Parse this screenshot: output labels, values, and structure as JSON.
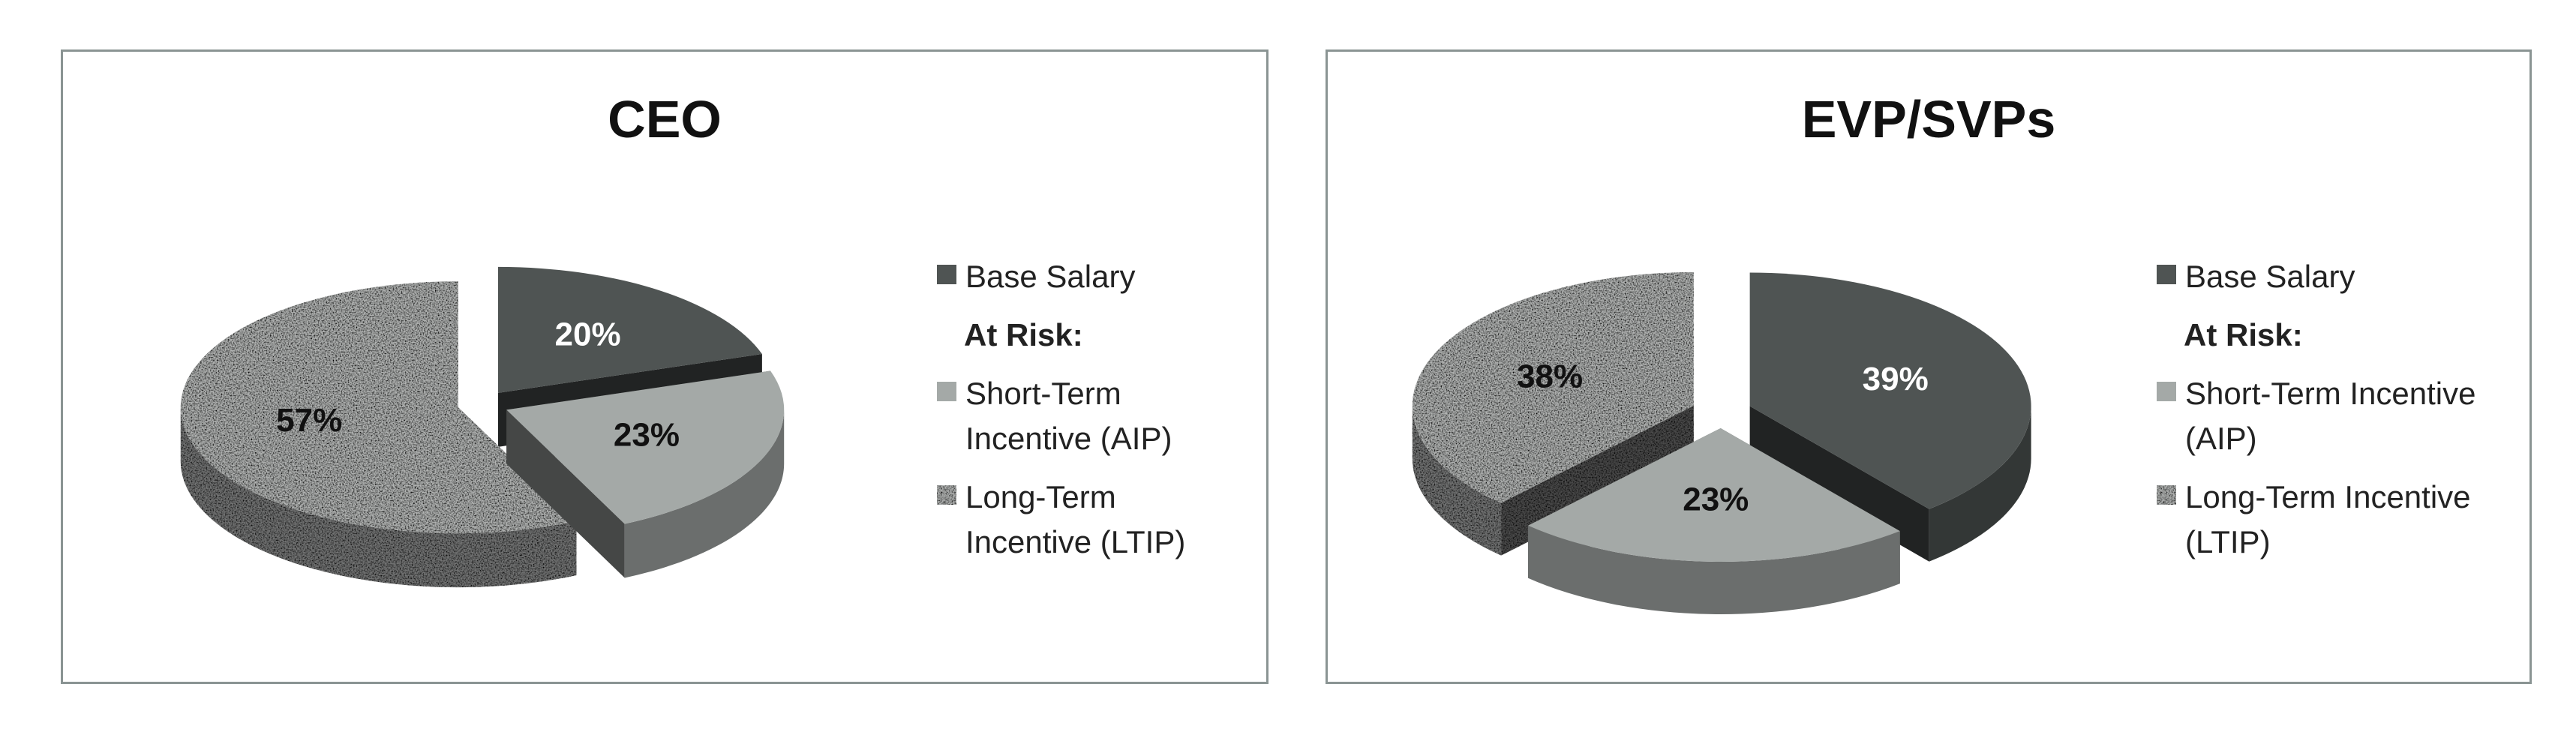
{
  "chart_data": [
    {
      "type": "pie",
      "title": "CEO",
      "categories": [
        "Base Salary",
        "Short-Term Incentive (AIP)",
        "Long-Term Incentive (LTIP)"
      ],
      "values": [
        20,
        23,
        57
      ],
      "value_labels": [
        "20%",
        "23%",
        "57%"
      ],
      "colors": [
        "#4f5453",
        "#a4a9a7",
        "#b4b6b5"
      ],
      "textured": [
        false,
        false,
        true
      ],
      "legend_subheading": "At Risk:"
    },
    {
      "type": "pie",
      "title": "EVP/SVPs",
      "categories": [
        "Base Salary",
        "Short-Term Incentive (AIP)",
        "Long-Term Incentive (LTIP)"
      ],
      "values": [
        39,
        23,
        38
      ],
      "value_labels": [
        "39%",
        "23%",
        "38%"
      ],
      "colors": [
        "#4f5453",
        "#a4a9a7",
        "#b4b6b5"
      ],
      "textured": [
        false,
        false,
        true
      ],
      "legend_subheading": "At Risk:"
    }
  ]
}
